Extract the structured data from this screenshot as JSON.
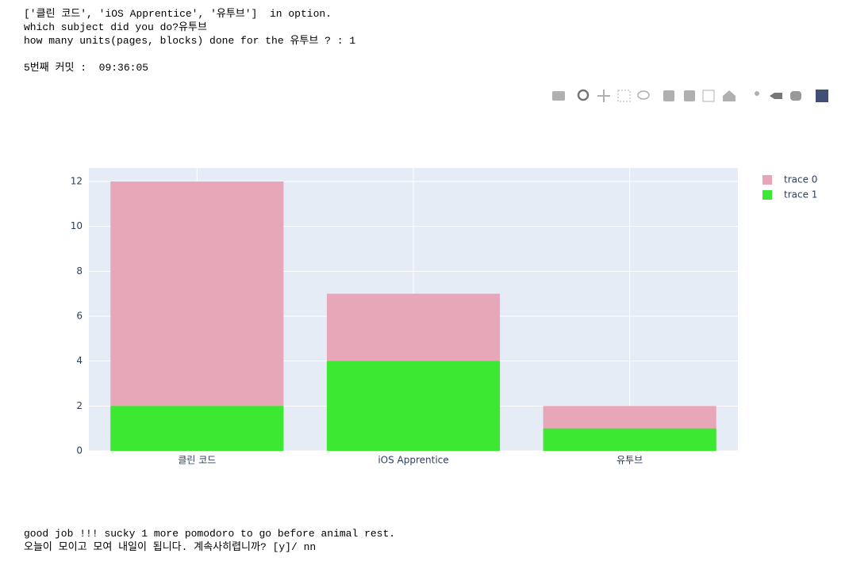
{
  "console_top": [
    "['클린 코드', 'iOS Apprentice', '유투브']  in option.",
    "which subject did you do?유투브",
    "how many units(pages, blocks) done for the 유투브 ? : 1",
    "",
    "5번째 커밋 :  09:36:05"
  ],
  "chart_data": {
    "type": "bar",
    "barmode": "overlay",
    "categories": [
      "클린 코드",
      "iOS Apprentice",
      "유투브"
    ],
    "series": [
      {
        "name": "trace 0",
        "color": "#e8a6b9",
        "values": [
          12,
          7,
          2
        ]
      },
      {
        "name": "trace 1",
        "color": "#3de832",
        "values": [
          2,
          4,
          1
        ]
      }
    ],
    "ylim": [
      0,
      12.6
    ],
    "yticks": [
      0,
      2,
      4,
      6,
      8,
      10,
      12
    ],
    "grid": true,
    "legend": "right"
  },
  "console_bottom": [
    "good job !!! sucky 1 more pomodoro to go before animal rest.",
    "오늘이 모이고 모여 내일이 됩니다. 계속사히렵니까? [y]/ nn"
  ]
}
